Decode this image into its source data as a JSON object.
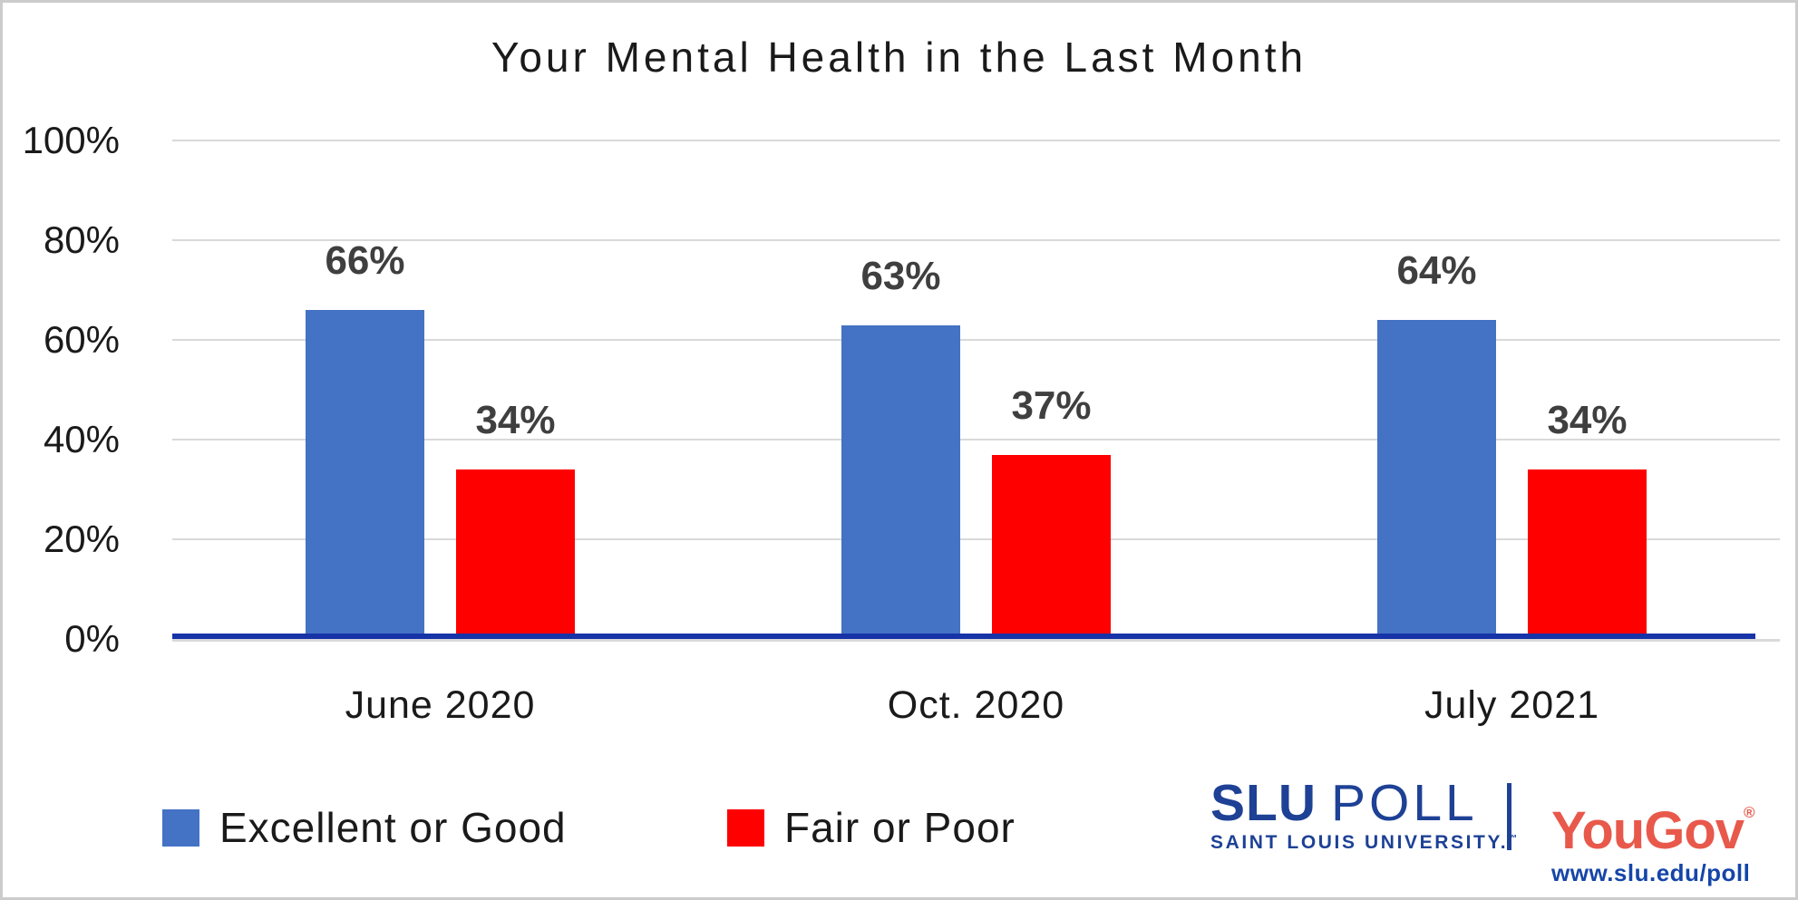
{
  "chart_data": {
    "type": "bar",
    "title": "Your Mental Health in the Last Month",
    "categories": [
      "June 2020",
      "Oct. 2020",
      "July 2021"
    ],
    "series": [
      {
        "name": "Excellent or Good",
        "color": "#4472C4",
        "values": [
          66,
          63,
          64
        ],
        "labels": [
          "66%",
          "63%",
          "64%"
        ]
      },
      {
        "name": "Fair or Poor",
        "color": "#FF0000",
        "values": [
          34,
          37,
          34
        ],
        "labels": [
          "34%",
          "37%",
          "34%"
        ]
      }
    ],
    "xlabel": "",
    "ylabel": "",
    "ylim": [
      0,
      100
    ],
    "yticks": [
      "100%",
      "80%",
      "60%",
      "40%",
      "20%",
      "0%"
    ],
    "grid": true,
    "legend_position": "bottom-left",
    "gridline_color": "#D9D9D9",
    "axis_line_color": "#1733A8",
    "data_label_color": "#3F3F3F"
  },
  "footer": {
    "slu_logo": {
      "name_bold": "SLU",
      "name_rest": "POLL",
      "subtitle": "SAINT LOUIS UNIVERSITY.",
      "trademark": "™",
      "color": "#1E4196"
    },
    "yougov_logo": {
      "text": "YouGov",
      "registered": "®",
      "color": "#E8594B"
    },
    "url": "www.slu.edu/poll",
    "url_color": "#1545A8"
  }
}
